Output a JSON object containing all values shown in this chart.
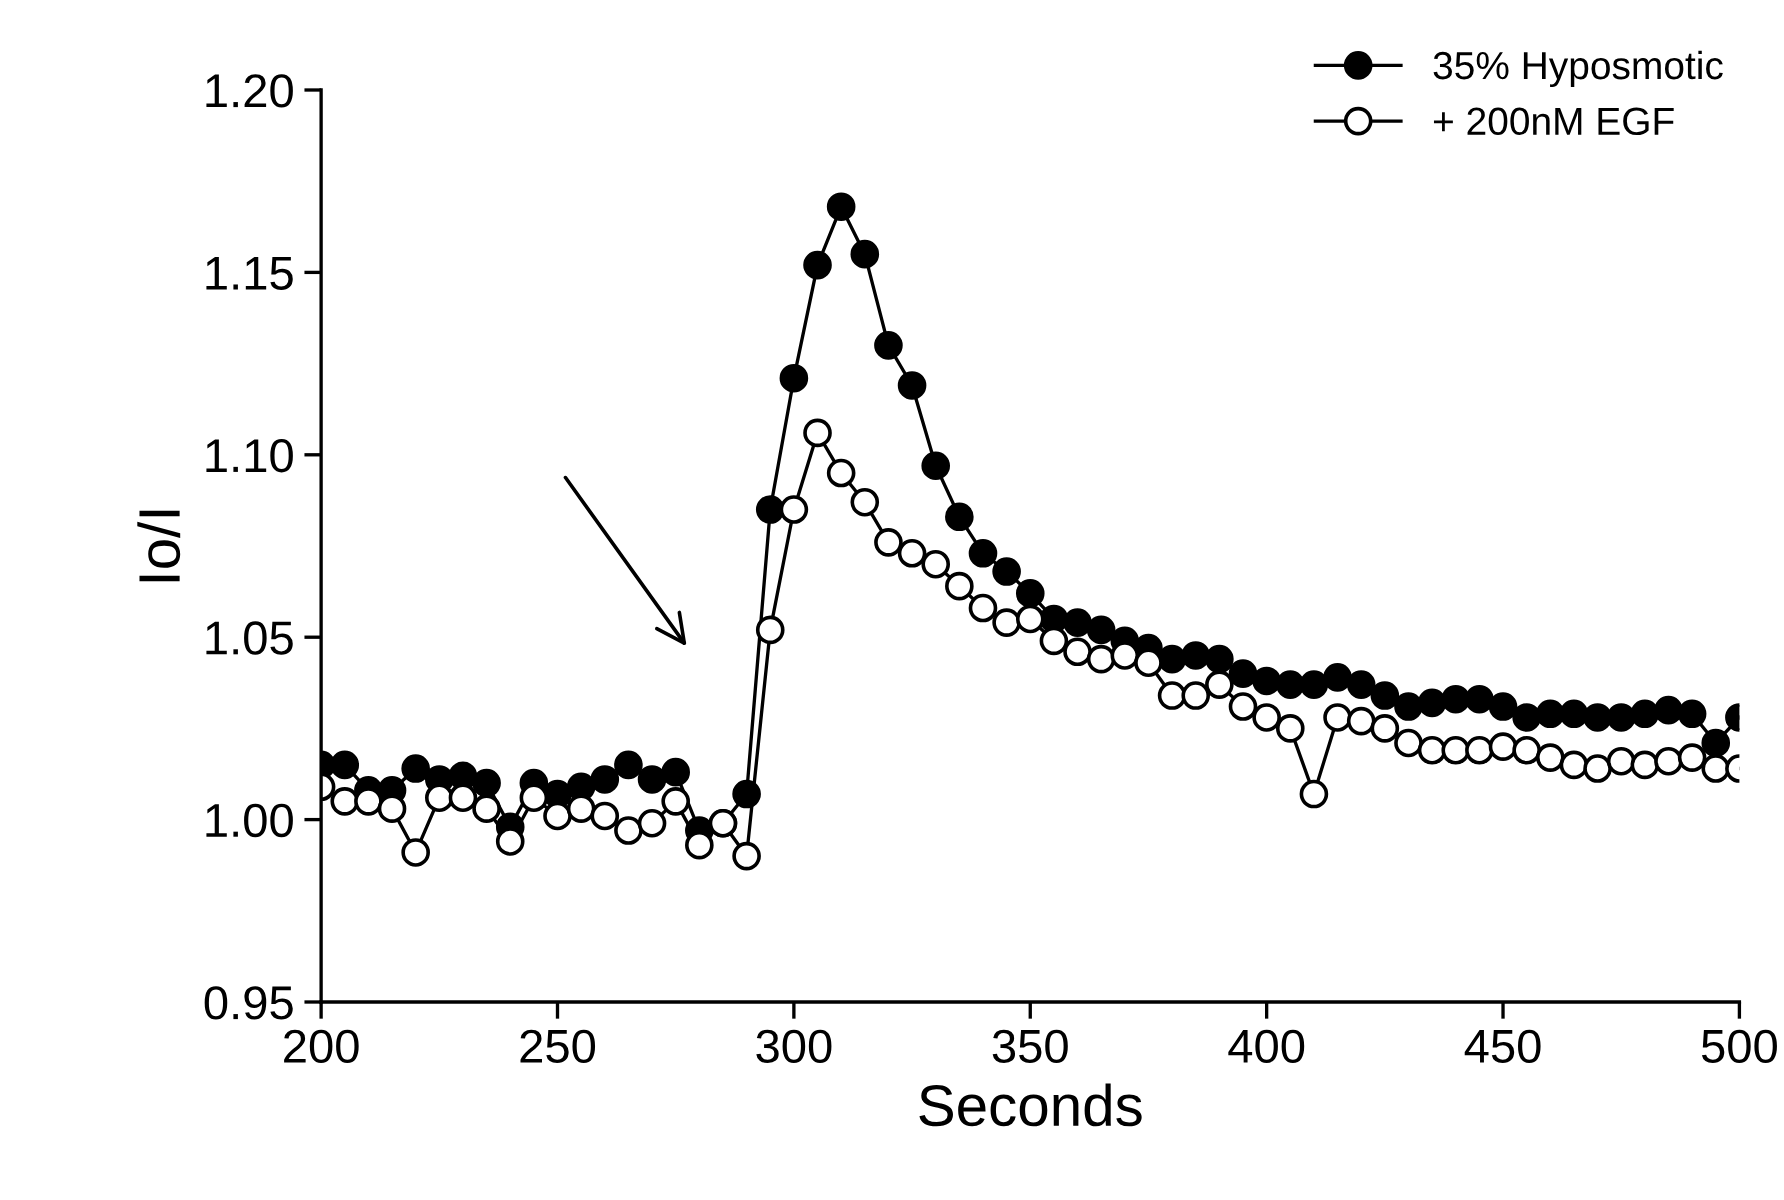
{
  "chart_data": {
    "type": "line",
    "xlabel": "Seconds",
    "ylabel": "Io/I",
    "marker": "circle",
    "legend": "top right",
    "grid": false,
    "x": [
      200,
      205,
      210,
      215,
      220,
      225,
      230,
      235,
      240,
      245,
      250,
      255,
      260,
      265,
      270,
      275,
      280,
      285,
      290,
      295,
      300,
      305,
      310,
      315,
      320,
      325,
      330,
      335,
      340,
      345,
      350,
      355,
      360,
      365,
      370,
      375,
      380,
      385,
      390,
      395,
      400,
      405,
      410,
      415,
      420,
      425,
      430,
      435,
      440,
      445,
      450,
      455,
      460,
      465,
      470,
      475,
      480,
      485,
      490,
      495,
      500
    ],
    "series": [
      {
        "name": "35% Hyposmotic",
        "color": "#000000",
        "values": [
          1.015,
          1.015,
          1.008,
          1.008,
          1.014,
          1.011,
          1.012,
          1.01,
          0.998,
          1.01,
          1.007,
          1.009,
          1.011,
          1.015,
          1.011,
          1.013,
          0.997,
          0.999,
          1.007,
          1.085,
          1.121,
          1.152,
          1.168,
          1.155,
          1.13,
          1.119,
          1.097,
          1.083,
          1.073,
          1.068,
          1.062,
          1.055,
          1.054,
          1.052,
          1.049,
          1.047,
          1.044,
          1.045,
          1.044,
          1.04,
          1.038,
          1.037,
          1.037,
          1.039,
          1.037,
          1.034,
          1.031,
          1.032,
          1.033,
          1.033,
          1.031,
          1.028,
          1.029,
          1.029,
          1.028,
          1.028,
          1.029,
          1.03,
          1.029,
          1.021,
          1.028
        ]
      },
      {
        "name": "+ 200nM EGF",
        "color": "#ffffff",
        "values": [
          1.009,
          1.005,
          1.005,
          1.003,
          0.991,
          1.006,
          1.006,
          1.003,
          0.994,
          1.006,
          1.001,
          1.003,
          1.001,
          0.997,
          0.999,
          1.005,
          0.993,
          0.999,
          0.99,
          1.052,
          1.085,
          1.106,
          1.095,
          1.087,
          1.076,
          1.073,
          1.07,
          1.064,
          1.058,
          1.054,
          1.055,
          1.049,
          1.046,
          1.044,
          1.045,
          1.043,
          1.034,
          1.034,
          1.037,
          1.031,
          1.028,
          1.025,
          1.007,
          1.028,
          1.027,
          1.025,
          1.021,
          1.019,
          1.019,
          1.019,
          1.02,
          1.019,
          1.017,
          1.015,
          1.014,
          1.016,
          1.015,
          1.016,
          1.017,
          1.014,
          1.014
        ]
      }
    ],
    "xlim": [
      200,
      500
    ],
    "xticks": [
      200,
      250,
      300,
      350,
      400,
      450,
      500
    ],
    "ylim": [
      0.95,
      1.2
    ],
    "yticks": [
      {
        "value": 0.95,
        "label": "0.95"
      },
      {
        "value": 1.0,
        "label": "1.00"
      },
      {
        "value": 1.05,
        "label": "1.05"
      },
      {
        "value": 1.1,
        "label": "1.10"
      },
      {
        "value": 1.15,
        "label": "1.15"
      },
      {
        "value": 1.2,
        "label": "1.20"
      }
    ]
  }
}
